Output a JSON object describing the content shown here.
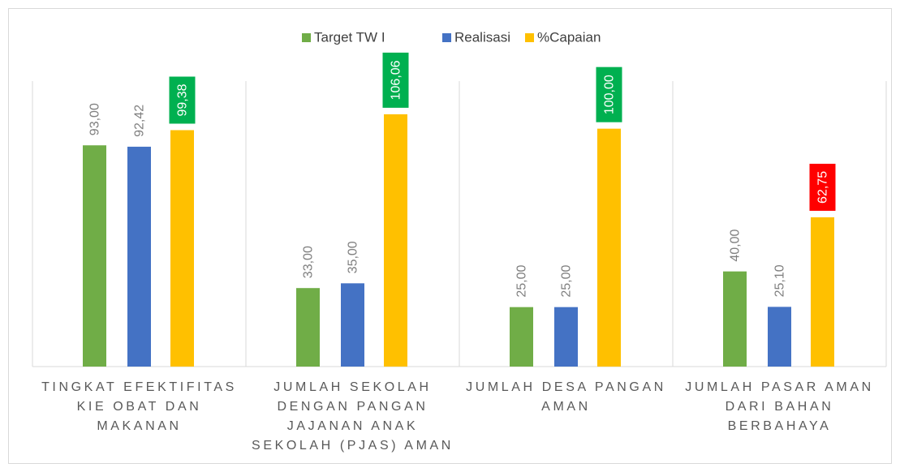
{
  "chart_data": {
    "type": "bar",
    "categories": [
      "TINGKAT EFEKTIFITAS KIE OBAT DAN MAKANAN",
      "JUMLAH SEKOLAH DENGAN PANGAN JAJANAN ANAK SEKOLAH (PJAS) AMAN",
      "JUMLAH DESA PANGAN AMAN",
      "JUMLAH PASAR AMAN DARI BAHAN BERBAHAYA"
    ],
    "series": [
      {
        "name": "Target TW I",
        "color": "#70ad47",
        "values": [
          93.0,
          33.0,
          25.0,
          40.0
        ],
        "value_labels": [
          "93,00",
          "33,00",
          "25,00",
          "40,00"
        ]
      },
      {
        "name": "Realisasi",
        "color": "#4472c4",
        "values": [
          92.42,
          35.0,
          25.0,
          25.1
        ],
        "value_labels": [
          "92,42",
          "35,00",
          "25,00",
          "25,10"
        ]
      },
      {
        "name": "%Capaian",
        "color": "#ffc000",
        "values": [
          99.38,
          106.06,
          100.0,
          62.75
        ],
        "value_labels": [
          "99,38",
          "106,06",
          "100,00",
          "62,75"
        ],
        "label_box_colors": [
          "#00b050",
          "#00b050",
          "#00b050",
          "#ff0000"
        ]
      }
    ],
    "ylim": [
      0,
      120
    ],
    "legend": "top"
  }
}
